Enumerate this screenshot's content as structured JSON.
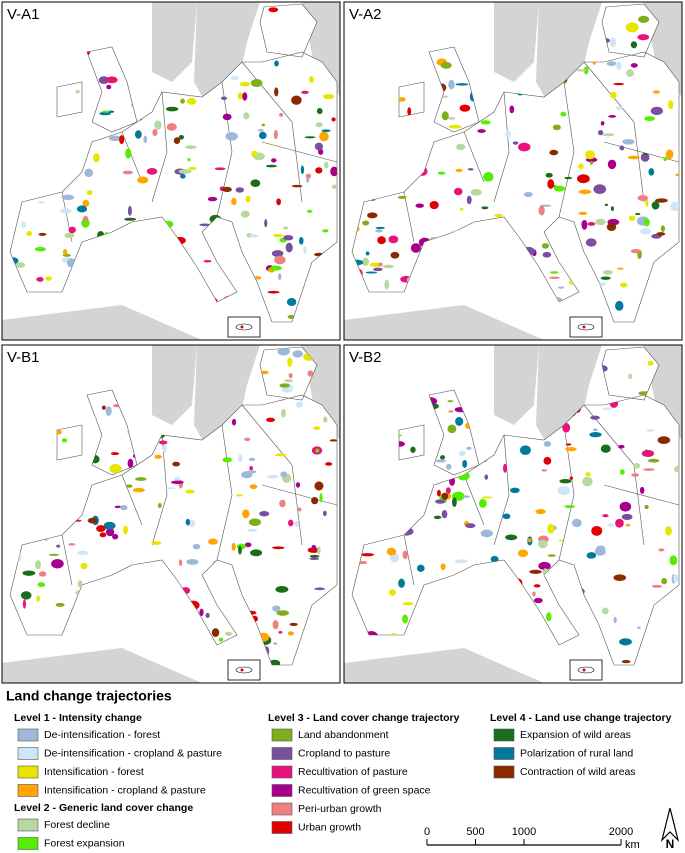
{
  "panels": [
    {
      "label": "V-A1"
    },
    {
      "label": "V-A2"
    },
    {
      "label": "V-B1"
    },
    {
      "label": "V-B2"
    }
  ],
  "legend": {
    "title": "Land change trajectories",
    "groups": [
      {
        "title": "Level 1 - Intensity change",
        "items": [
          {
            "label": "De-intensification - forest",
            "color": "#9db8d9"
          },
          {
            "label": "De-intensification - cropland & pasture",
            "color": "#cfe6f7"
          },
          {
            "label": "Intensification - forest",
            "color": "#e6e600"
          },
          {
            "label": "Intensification - cropland & pasture",
            "color": "#ffa500"
          }
        ]
      },
      {
        "title": "Level 2 - Generic land cover change",
        "items": [
          {
            "label": "Forest decline",
            "color": "#b8d8a0"
          },
          {
            "label": "Forest expansion",
            "color": "#55ee00"
          }
        ]
      },
      {
        "title": "Level 3 - Land cover change trajectory",
        "items": [
          {
            "label": "Land abandonment",
            "color": "#7fae1a"
          },
          {
            "label": "Cropland to pasture",
            "color": "#7b4fa0"
          },
          {
            "label": "Recultivation of pasture",
            "color": "#e8137a"
          },
          {
            "label": "Recultivation of green space",
            "color": "#a8008c"
          },
          {
            "label": "Peri-urban growth",
            "color": "#f08080"
          },
          {
            "label": "Urban growth",
            "color": "#e00000"
          }
        ]
      },
      {
        "title": "Level 4 - Land use change trajectory",
        "items": [
          {
            "label": "Expansion of wild areas",
            "color": "#1a6e1a"
          },
          {
            "label": "Polarization of rural land",
            "color": "#007a9a"
          },
          {
            "label": "Contraction of wild areas",
            "color": "#8b2a00"
          }
        ]
      }
    ]
  },
  "scale_bar": {
    "ticks": [
      0,
      500,
      1000,
      2000
    ],
    "unit": "km"
  },
  "north_arrow": {
    "label": "N"
  }
}
